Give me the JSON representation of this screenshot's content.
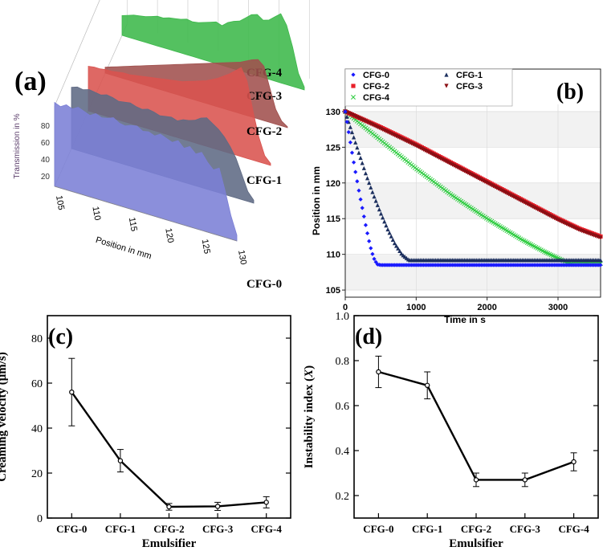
{
  "chart_data": [
    {
      "id": "a",
      "panel_label": "(a)",
      "type": "area",
      "ylabel": "Transmission in %",
      "xlabel": "Position in mm",
      "yticks": [
        "80",
        "60",
        "40",
        "20"
      ],
      "xticks": [
        "105",
        "110",
        "115",
        "120",
        "125",
        "130"
      ],
      "series": [
        {
          "name": "CFG-0",
          "color": "#7b7fd6",
          "profile": [
            72,
            70,
            73,
            71,
            74,
            72,
            70,
            73,
            71,
            72,
            74,
            71,
            70,
            72,
            73,
            70,
            71,
            69,
            72,
            70,
            68,
            71,
            66,
            69,
            64,
            67,
            60,
            55,
            58,
            40,
            20,
            5
          ]
        },
        {
          "name": "CFG-1",
          "color": "#5f6a84",
          "profile": [
            62,
            64,
            63,
            65,
            64,
            63,
            65,
            64,
            62,
            63,
            64,
            62,
            61,
            63,
            62,
            60,
            61,
            62,
            60,
            63,
            64,
            66,
            70,
            72,
            68,
            64,
            58,
            50,
            40,
            25,
            10,
            3
          ]
        },
        {
          "name": "CFG-2",
          "color": "#d9534f",
          "profile": [
            45,
            46,
            46,
            47,
            47,
            48,
            49,
            49,
            50,
            51,
            52,
            53,
            54,
            55,
            56,
            57,
            58,
            60,
            62,
            64,
            66,
            69,
            72,
            76,
            80,
            85,
            90,
            78,
            50,
            25,
            8,
            2
          ]
        },
        {
          "name": "CFG-3",
          "color": "#a0504d",
          "profile": [
            6,
            8,
            10,
            12,
            14,
            16,
            18,
            20,
            22,
            24,
            26,
            28,
            30,
            32,
            34,
            36,
            38,
            40,
            42,
            44,
            46,
            48,
            50,
            52,
            55,
            58,
            60,
            55,
            35,
            15,
            5,
            1
          ]
        },
        {
          "name": "CFG-4",
          "color": "#3cb84a",
          "profile": [
            20,
            22,
            24,
            25,
            26,
            28,
            30,
            30,
            32,
            33,
            34,
            36,
            35,
            36,
            38,
            40,
            42,
            40,
            45,
            48,
            50,
            55,
            60,
            62,
            58,
            60,
            65,
            70,
            60,
            40,
            15,
            3
          ]
        }
      ]
    },
    {
      "id": "b",
      "panel_label": "(b)",
      "type": "scatter",
      "xlabel": "Time in s",
      "ylabel": "Position in mm",
      "xlim": [
        0,
        3600
      ],
      "ylim": [
        104,
        131
      ],
      "xticks": [
        0,
        1000,
        2000,
        3000
      ],
      "yticks": [
        105,
        110,
        115,
        120,
        125,
        130
      ],
      "series": [
        {
          "name": "CFG-0",
          "color": "#1a1aff",
          "marker": "diamond",
          "points": [
            [
              0,
              130
            ],
            [
              50,
              127
            ],
            [
              100,
              124
            ],
            [
              150,
              121.2
            ],
            [
              200,
              118.5
            ],
            [
              250,
              116
            ],
            [
              300,
              113.5
            ],
            [
              350,
              111.2
            ],
            [
              400,
              109.5
            ],
            [
              450,
              108.6
            ],
            [
              500,
              108.5
            ],
            [
              3600,
              108.5
            ]
          ]
        },
        {
          "name": "CFG-1",
          "color": "#1c2f5e",
          "marker": "triangle",
          "points": [
            [
              0,
              130
            ],
            [
              100,
              127
            ],
            [
              200,
              124
            ],
            [
              300,
              121
            ],
            [
              400,
              118.3
            ],
            [
              500,
              115.8
            ],
            [
              600,
              113.5
            ],
            [
              700,
              111.5
            ],
            [
              800,
              110
            ],
            [
              900,
              109.2
            ],
            [
              1000,
              109.2
            ],
            [
              3600,
              109.2
            ]
          ]
        },
        {
          "name": "CFG-2",
          "color": "#e8202a",
          "marker": "square",
          "points": [
            [
              0,
              130
            ],
            [
              500,
              127.8
            ],
            [
              1000,
              125.4
            ],
            [
              1500,
              122.8
            ],
            [
              2000,
              120.2
            ],
            [
              2500,
              117.6
            ],
            [
              3000,
              115
            ],
            [
              3300,
              113.6
            ],
            [
              3600,
              112.5
            ]
          ]
        },
        {
          "name": "CFG-3",
          "color": "#8b0f14",
          "marker": "triangle-down",
          "points": [
            [
              0,
              130
            ],
            [
              500,
              127.6
            ],
            [
              1000,
              125.2
            ],
            [
              1500,
              122.6
            ],
            [
              2000,
              120
            ],
            [
              2500,
              117.4
            ],
            [
              3000,
              114.8
            ],
            [
              3300,
              113.4
            ],
            [
              3600,
              112.3
            ]
          ]
        },
        {
          "name": "CFG-4",
          "color": "#2ecc40",
          "marker": "x",
          "points": [
            [
              0,
              130
            ],
            [
              500,
              126
            ],
            [
              1000,
              122
            ],
            [
              1500,
              118.3
            ],
            [
              2000,
              115
            ],
            [
              2500,
              112
            ],
            [
              2800,
              110.4
            ],
            [
              3100,
              109
            ],
            [
              3200,
              108.7
            ],
            [
              3600,
              108.7
            ]
          ]
        }
      ]
    },
    {
      "id": "c",
      "panel_label": "(c)",
      "type": "line",
      "xlabel": "Emulsifier",
      "ylabel": "Creaming velocity (μm/s)",
      "categories": [
        "CFG-0",
        "CFG-1",
        "CFG-2",
        "CFG-3",
        "CFG-4"
      ],
      "values": [
        56,
        25.5,
        5,
        5.2,
        7
      ],
      "errors": [
        15,
        5,
        1.5,
        1.8,
        2.5
      ],
      "ylim": [
        0,
        90
      ],
      "yticks": [
        0,
        20,
        40,
        60,
        80
      ]
    },
    {
      "id": "d",
      "panel_label": "(d)",
      "type": "line",
      "xlabel": "Emulsifier",
      "ylabel": "Instability index (X)",
      "ylabel_parts": [
        "Instability index (",
        "X",
        ")"
      ],
      "categories": [
        "CFG-0",
        "CFG-1",
        "CFG-2",
        "CFG-3",
        "CFG-4"
      ],
      "values": [
        0.75,
        0.69,
        0.27,
        0.27,
        0.35
      ],
      "errors": [
        0.07,
        0.06,
        0.03,
        0.03,
        0.04
      ],
      "ylim": [
        0.1,
        1.0
      ],
      "yticks": [
        0.2,
        0.4,
        0.6,
        0.8,
        1.0
      ]
    }
  ]
}
